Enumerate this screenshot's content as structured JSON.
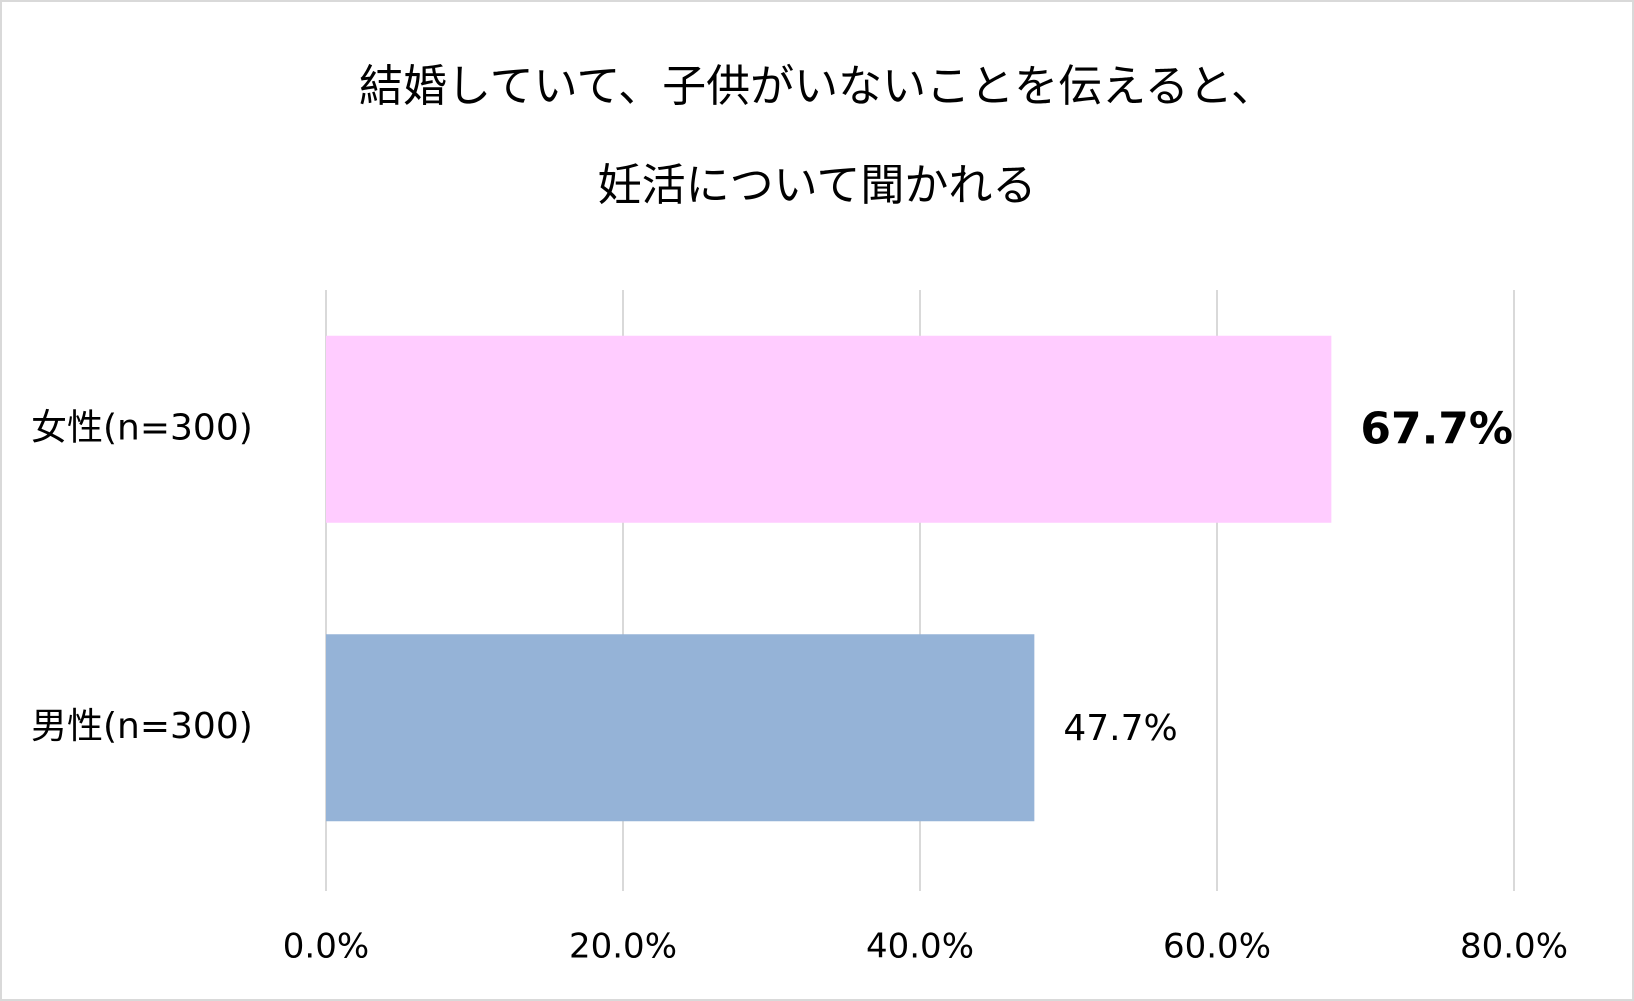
{
  "chart_data": {
    "type": "bar",
    "orientation": "horizontal",
    "title": [
      "結婚していて、子供がいないことを伝えると、",
      "妊活について聞かれる"
    ],
    "categories": [
      "女性(n=300)",
      "男性(n=300)"
    ],
    "values": [
      67.7,
      47.7
    ],
    "value_labels": [
      "67.7%",
      "47.7%"
    ],
    "value_label_bold": [
      true,
      false
    ],
    "colors": [
      "#ffccff",
      "#95b3d7"
    ],
    "xlim": [
      0,
      80
    ],
    "xticks": [
      {
        "value": 0,
        "label": "0.0%"
      },
      {
        "value": 20,
        "label": "20.0%"
      },
      {
        "value": 40,
        "label": "40.0%"
      },
      {
        "value": 60,
        "label": "60.0%"
      },
      {
        "value": 80,
        "label": "80.0%"
      }
    ],
    "grid": true
  }
}
